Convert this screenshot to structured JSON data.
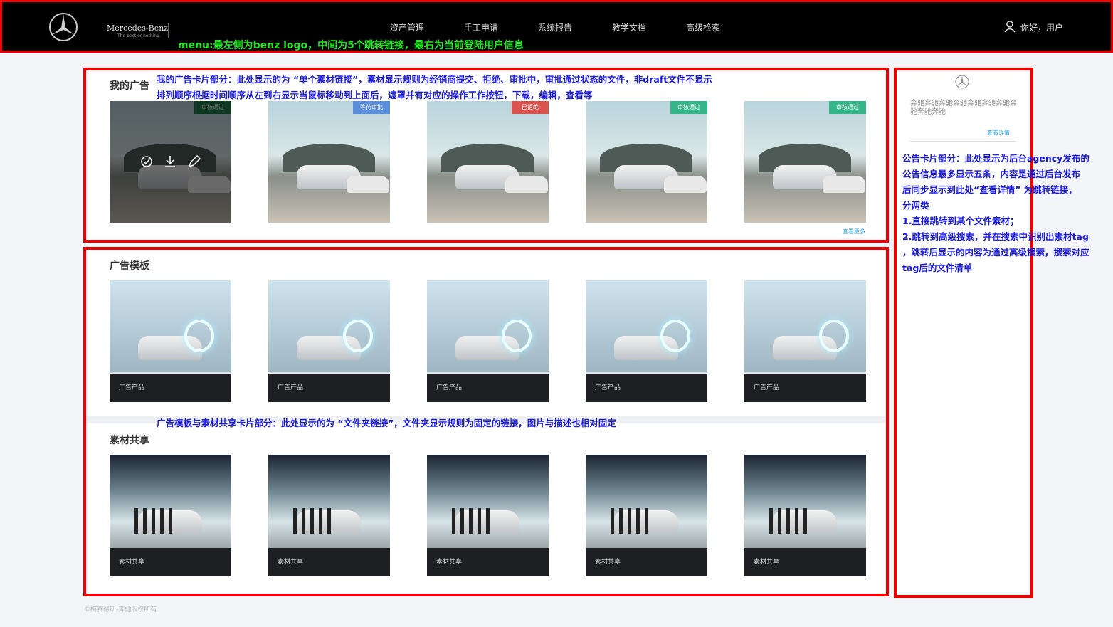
{
  "header": {
    "brand": "Mercedes-Benz",
    "slogan": "The best or nothing.",
    "menu": [
      "资产管理",
      "手工申请",
      "系统报告",
      "教学文档",
      "高级检索"
    ],
    "user": "你好，用户"
  },
  "annotations": {
    "menu": "menu:最左侧为benz logo，中间为5个跳转链接，最右为当前登陆用户信息",
    "my_ads": [
      "我的广告卡片部分：此处显示的为 “单个素材链接”，素材显示规则为经销商提交、拒绝、审批中，审批通过状态的文件，非draft文件不显示",
      "排列顺序根据时间顺序从左到右显示当鼠标移动到上面后，遮罩并有对应的操作工作按钮，下载，编辑，查看等"
    ],
    "folders": "广告模板与素材共享卡片部分：此处显示的为 “文件夹链接”，文件夹显示规则为固定的链接，图片与描述也相对固定",
    "notice": [
      "公告卡片部分：此处显示为后台agency发布的",
      "公告信息最多显示五条，内容是通过后台发布",
      "后同步显示到此处“查看详情” 为跳转链接，",
      "分两类",
      "1.直接跳转到某个文件素材；",
      "2.跳转到高级搜索，并在搜索中识别出素材tag",
      "，跳转后显示的内容为通过高级搜索，搜索对应",
      "tag后的文件清单"
    ]
  },
  "my_ads": {
    "title": "我的广告",
    "badges": [
      "审核通过",
      "等待审批",
      "已拒绝",
      "审核通过",
      "审核通过"
    ],
    "more": "查看更多"
  },
  "templates": {
    "title": "广告模板",
    "labels": [
      "广告产品",
      "广告产品",
      "广告产品",
      "广告产品",
      "广告产品"
    ]
  },
  "shares": {
    "title": "素材共享",
    "labels": [
      "素材共享",
      "素材共享",
      "素材共享",
      "素材共享",
      "素材共享"
    ]
  },
  "notice": {
    "text": "奔驰奔驰奔驰奔驰奔驰奔驰奔驰奔驰奔驰奔驰",
    "link": "查看详情"
  },
  "footer": "©梅赛德斯-奔驰版权所有"
}
